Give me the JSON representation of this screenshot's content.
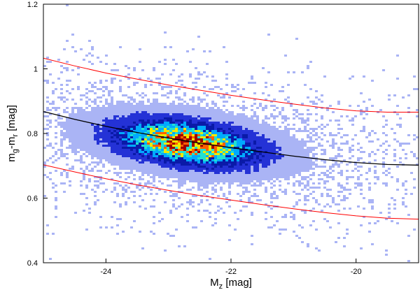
{
  "chart_data": {
    "type": "heatmap",
    "subtype": "2d-density-histogram-with-fit-curves",
    "title": "",
    "xlabel": {
      "main": "M",
      "sub": "z",
      "unit": " [mag]"
    },
    "ylabel": {
      "p1": "m",
      "s1": "g",
      "p2": "-m",
      "s2": "r",
      "unit": " [mag]"
    },
    "xlim": [
      -25,
      -19
    ],
    "ylim": [
      0.4,
      1.2
    ],
    "xticks": [
      -24,
      -22,
      -20
    ],
    "xtick_labels": [
      "-24",
      "-22",
      "-20"
    ],
    "yticks": [
      0.4,
      0.6,
      0.8,
      1.0,
      1.2
    ],
    "ytick_labels": [
      "0.4",
      "0.6",
      "0.8",
      "1",
      "1.2"
    ],
    "grid": false,
    "legend": "none",
    "density": {
      "peak_x": -22.7,
      "peak_y": 0.77,
      "sigma_x": 0.85,
      "sigma_y": 0.05,
      "slope": -0.022,
      "colormap": [
        "#ffffff",
        "#aab4f5",
        "#2432d6",
        "#0a1aa8",
        "#00aaff",
        "#22e0d0",
        "#f0e800",
        "#ff6000",
        "#a00000"
      ]
    },
    "series": [
      {
        "color": "#000000",
        "x": [
          -25,
          -24.5,
          -24,
          -23.5,
          -23,
          -22.5,
          -22,
          -21.5,
          -21,
          -20.5,
          -20,
          -19.5,
          -19
        ],
        "y": [
          0.868,
          0.844,
          0.822,
          0.803,
          0.786,
          0.77,
          0.756,
          0.743,
          0.73,
          0.719,
          0.71,
          0.704,
          0.702
        ]
      },
      {
        "color": "#ff0000",
        "x": [
          -25,
          -24.5,
          -24,
          -23.5,
          -23,
          -22.5,
          -22,
          -21.5,
          -21,
          -20.5,
          -20,
          -19.5,
          -19
        ],
        "y": [
          1.033,
          1.009,
          0.987,
          0.968,
          0.95,
          0.934,
          0.918,
          0.904,
          0.891,
          0.879,
          0.87,
          0.866,
          0.866
        ]
      },
      {
        "color": "#ff0000",
        "x": [
          -25,
          -24.5,
          -24,
          -23.5,
          -23,
          -22.5,
          -22,
          -21.5,
          -21,
          -20.5,
          -20,
          -19.5,
          -19
        ],
        "y": [
          0.703,
          0.681,
          0.66,
          0.641,
          0.624,
          0.608,
          0.594,
          0.58,
          0.567,
          0.555,
          0.545,
          0.538,
          0.535
        ]
      }
    ]
  }
}
